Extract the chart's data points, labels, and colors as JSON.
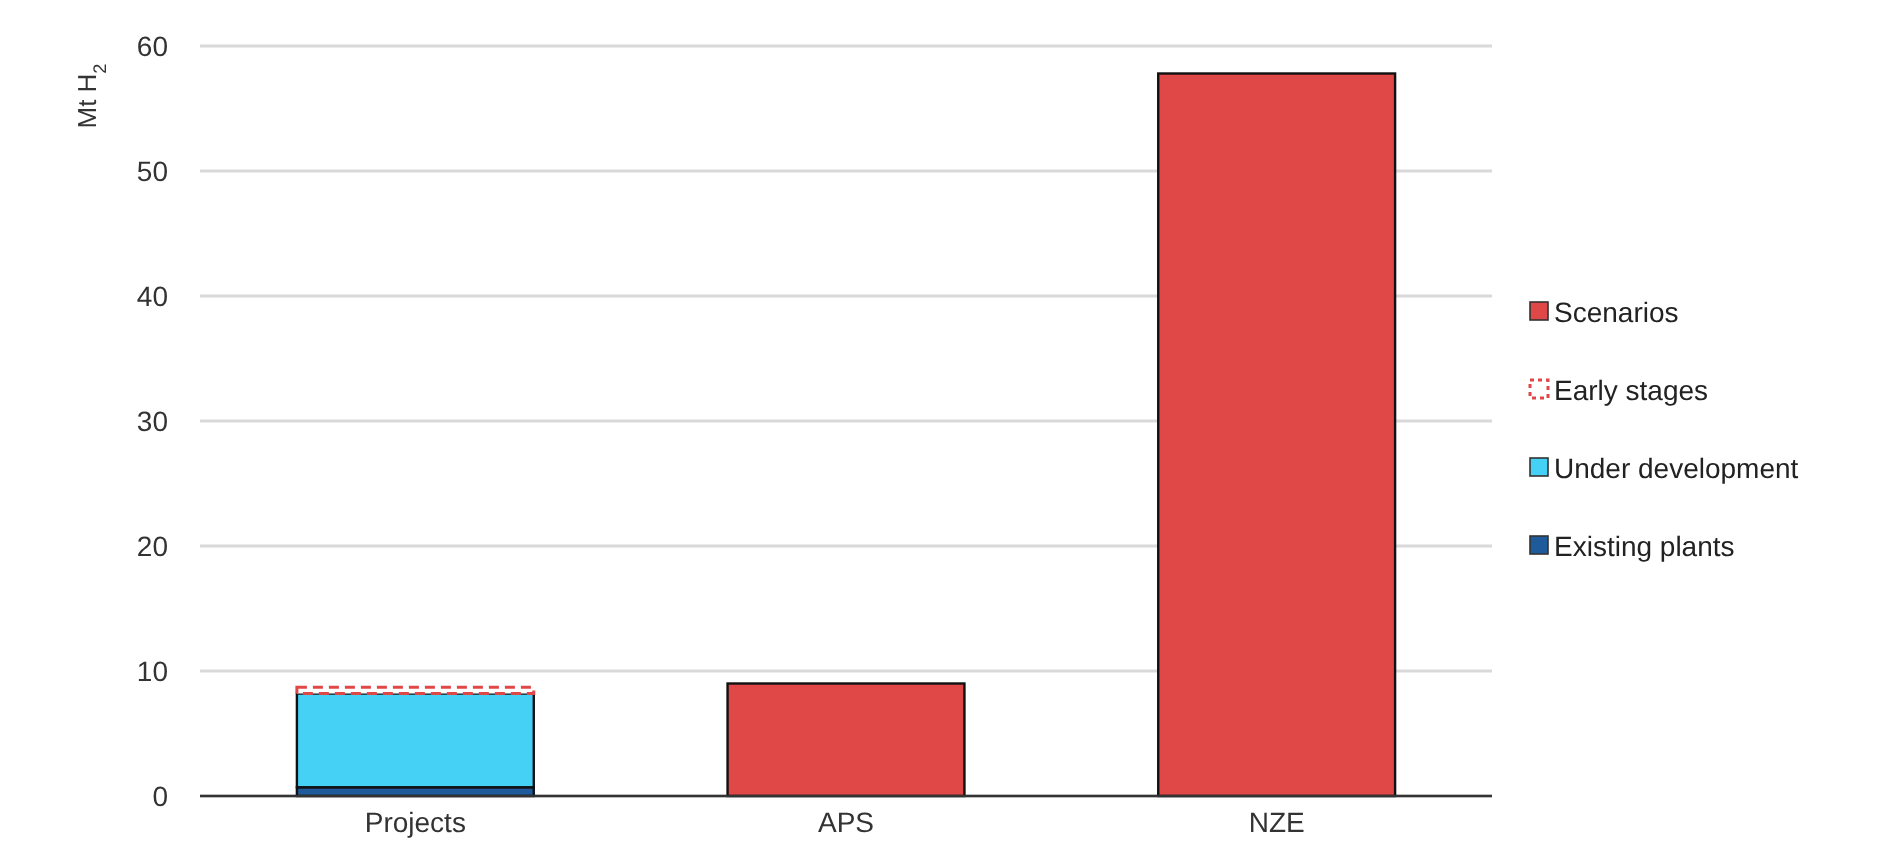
{
  "chart_data": {
    "type": "bar",
    "ylabel": "Mt H$_{2}$",
    "categories": [
      "Projects",
      "APS",
      "NZE"
    ],
    "stacked": true,
    "series": [
      {
        "name": "Existing plants",
        "color": "#1f5a9a",
        "values": [
          0.7,
          null,
          null
        ]
      },
      {
        "name": "Under development",
        "color": "#45d0f5",
        "values": [
          7.5,
          null,
          null
        ]
      },
      {
        "name": "Early stages",
        "color": "#e04848",
        "line_style": "dashed",
        "values": [
          0.5,
          null,
          null
        ]
      },
      {
        "name": "Scenarios",
        "color": "#e04848",
        "values": [
          null,
          9,
          57.8
        ]
      }
    ],
    "ylim": [
      0,
      60
    ],
    "yticks": [
      0,
      10,
      20,
      30,
      40,
      50,
      60
    ],
    "grid": "y",
    "legend": "right"
  }
}
